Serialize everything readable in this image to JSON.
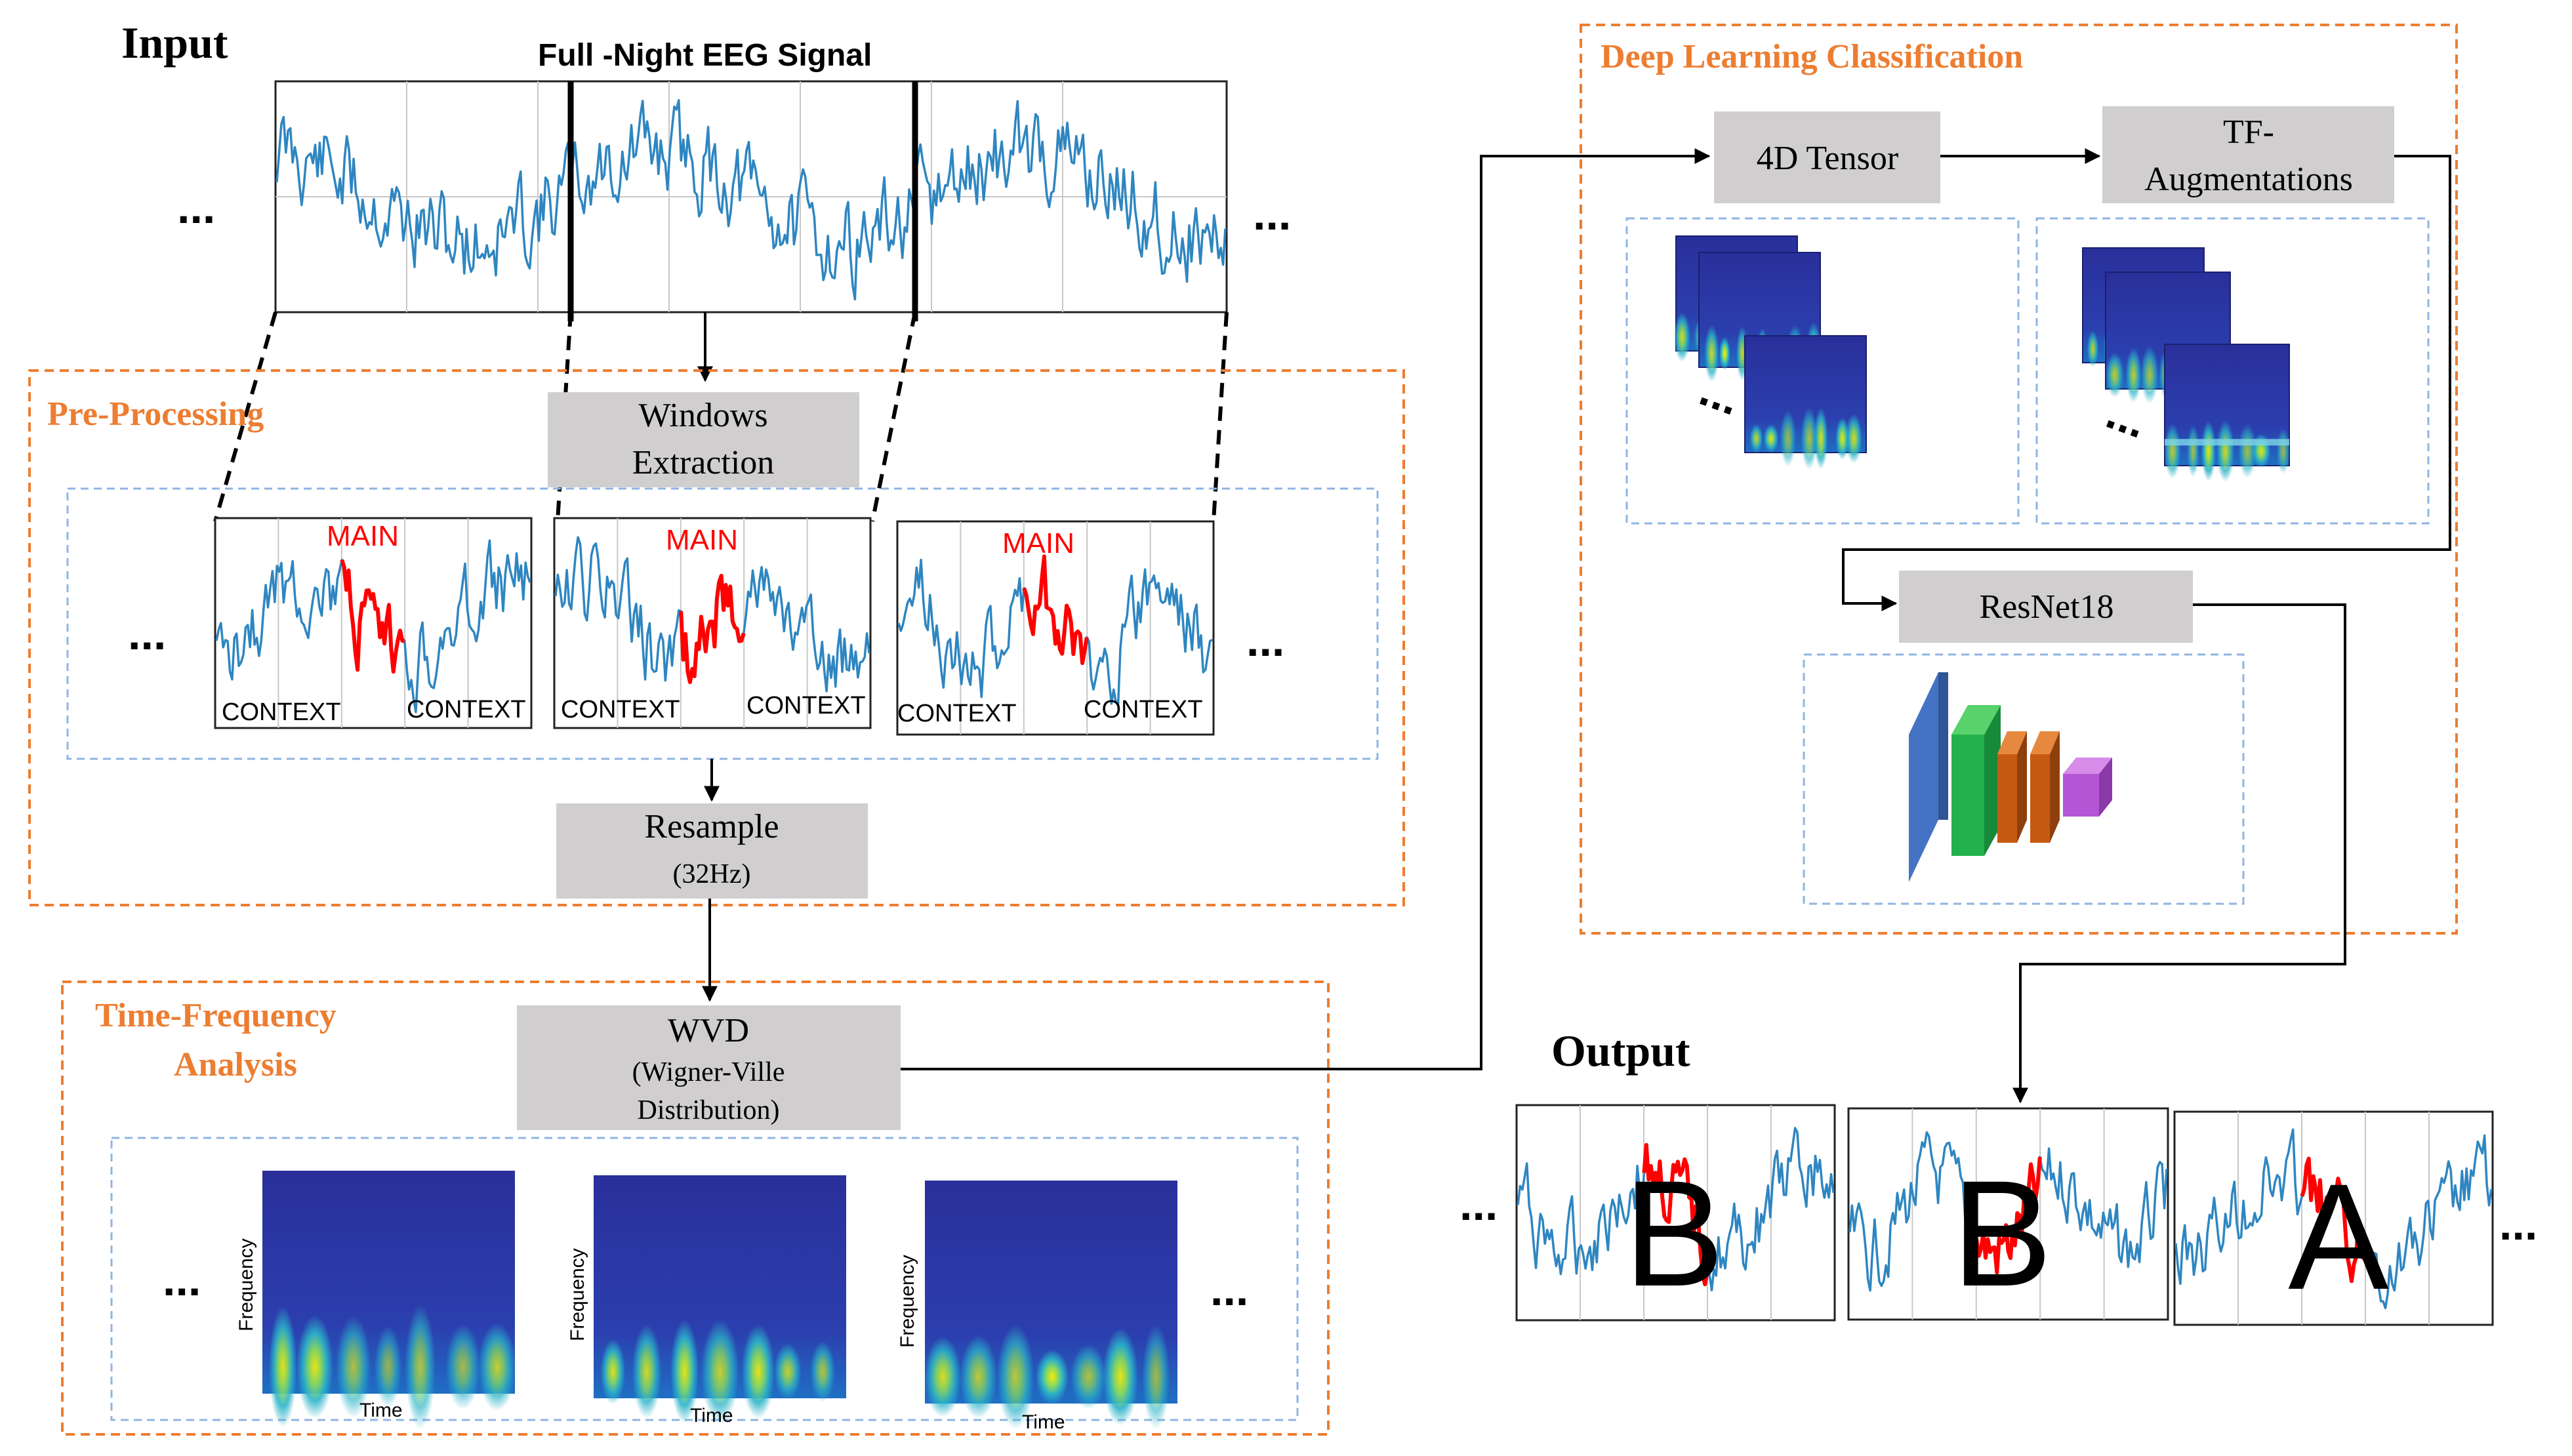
{
  "input": {
    "title": "Input",
    "signal_title": "Full -Night EEG Signal",
    "ellipsis": "..."
  },
  "preprocessing": {
    "title": "Pre-Processing",
    "windows_box": {
      "line1": "Windows",
      "line2": "Extraction"
    },
    "main_label": "MAIN",
    "context_label": "CONTEXT",
    "resample_box": {
      "line1": "Resample",
      "line2": "(32Hz)"
    }
  },
  "tf_analysis": {
    "title_line1": "Time-Frequency",
    "title_line2": "Analysis",
    "wvd_box": {
      "line1": "WVD",
      "line2": "(Wigner-Ville",
      "line3": "Distribution)"
    },
    "y_axis_label": "Frequency",
    "x_axis_label": "Time"
  },
  "deep_learning": {
    "title": "Deep Learning Classification",
    "tensor_box": "4D Tensor",
    "aug_box": {
      "line1": "TF-",
      "line2": "Augmentations"
    },
    "resnet_box": "ResNet18"
  },
  "output": {
    "title": "Output",
    "labels": [
      "B",
      "B",
      "A"
    ]
  },
  "colors": {
    "section_title": "#ed7d31",
    "eeg_trace": "#2e86c1",
    "main_segment": "#ff0000",
    "box_fill": "#d0cece",
    "inner_dash": "#8fb4e3",
    "resnet_blue": "#4472c4",
    "resnet_green": "#22b14c",
    "resnet_orange": "#c55a11",
    "resnet_purple": "#b455d6"
  }
}
